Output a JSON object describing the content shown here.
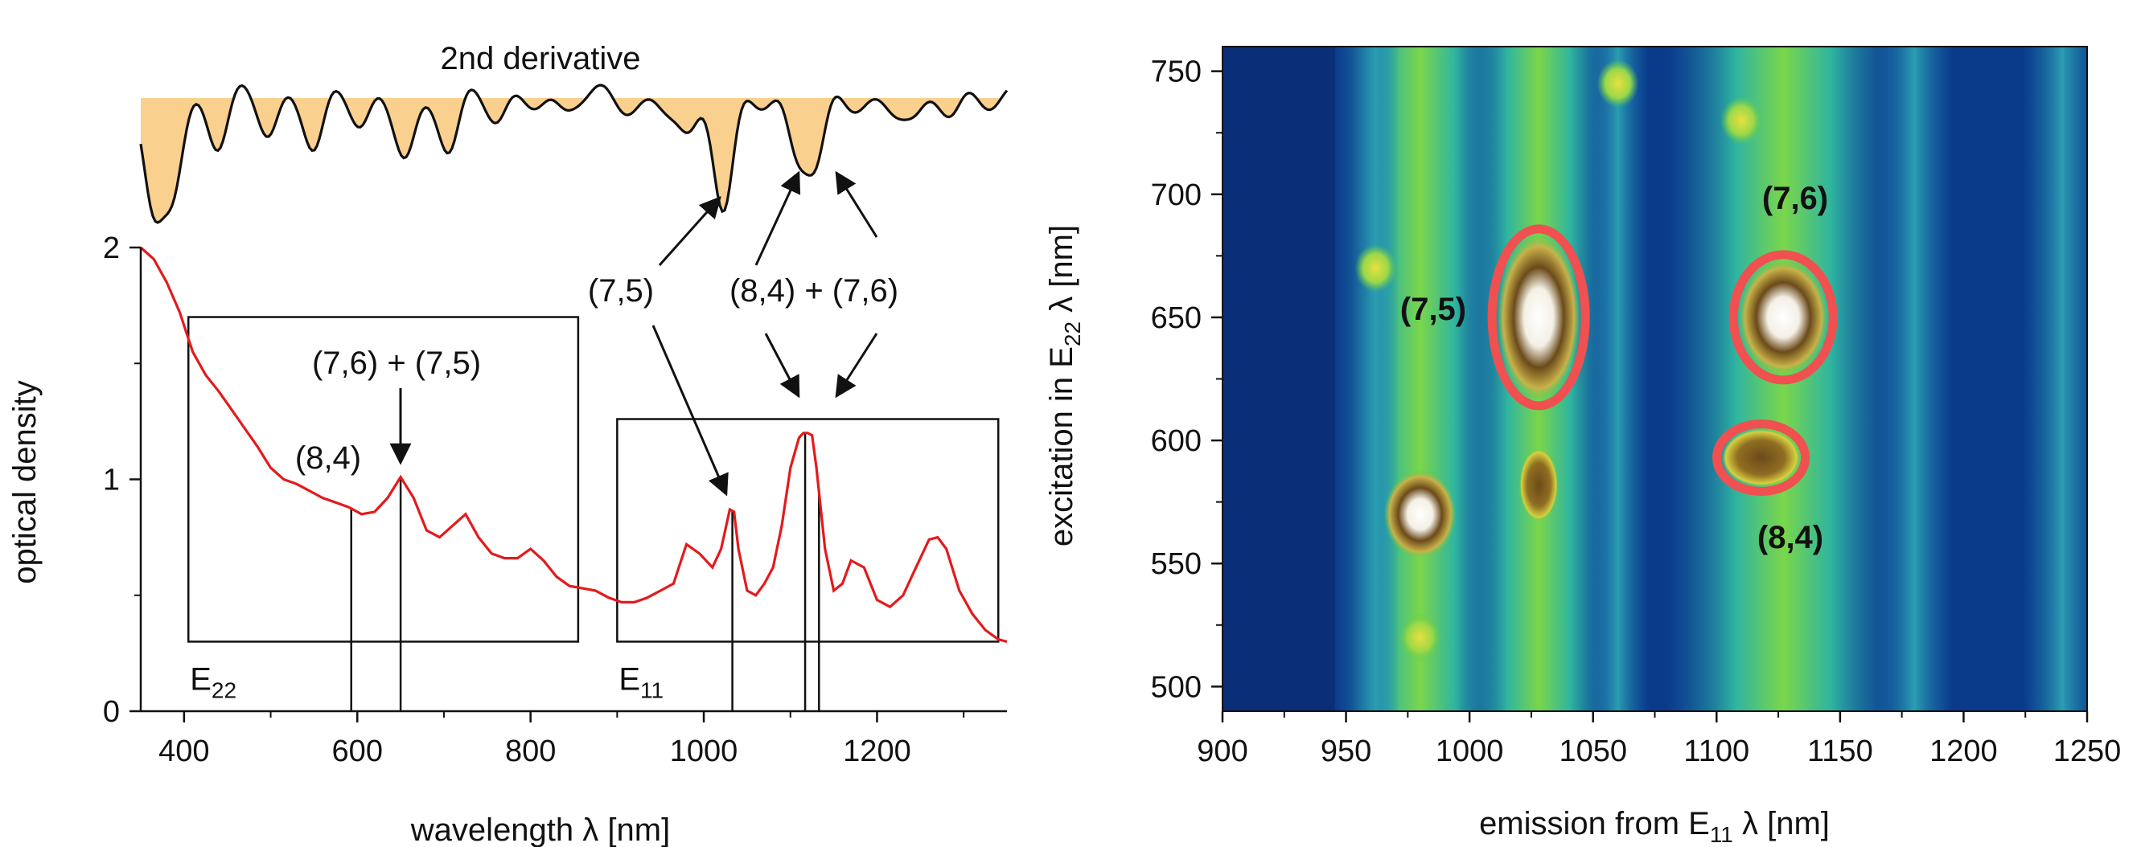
{
  "chart_data": [
    {
      "type": "line",
      "xlabel": "wavelength λ [nm]",
      "ylabel": "optical density",
      "xlim": [
        350,
        1350
      ],
      "ylim": [
        0,
        2
      ],
      "x_ticks": [
        "400",
        "600",
        "800",
        "1000",
        "1200"
      ],
      "y_ticks": [
        "0",
        "1",
        "2"
      ],
      "inset_title": "2nd derivative",
      "series": [
        {
          "color": "#e41a1c",
          "x": [
            350,
            365,
            380,
            395,
            410,
            425,
            440,
            455,
            470,
            485,
            500,
            515,
            530,
            545,
            560,
            575,
            590,
            605,
            620,
            635,
            650,
            665,
            680,
            695,
            710,
            725,
            740,
            755,
            770,
            785,
            800,
            815,
            830,
            845,
            860,
            875,
            890,
            905,
            920,
            935,
            950,
            965,
            980,
            995,
            1010,
            1020,
            1030,
            1035,
            1040,
            1050,
            1060,
            1070,
            1080,
            1090,
            1100,
            1110,
            1115,
            1120,
            1125,
            1130,
            1140,
            1150,
            1160,
            1170,
            1185,
            1200,
            1215,
            1230,
            1245,
            1260,
            1270,
            1280,
            1295,
            1310,
            1325,
            1340,
            1350
          ],
          "y": [
            2.0,
            1.95,
            1.85,
            1.72,
            1.55,
            1.45,
            1.38,
            1.3,
            1.22,
            1.14,
            1.05,
            1.0,
            0.98,
            0.95,
            0.92,
            0.9,
            0.88,
            0.85,
            0.86,
            0.92,
            1.01,
            0.92,
            0.78,
            0.75,
            0.8,
            0.85,
            0.75,
            0.68,
            0.66,
            0.66,
            0.7,
            0.65,
            0.58,
            0.54,
            0.53,
            0.52,
            0.49,
            0.47,
            0.47,
            0.49,
            0.52,
            0.55,
            0.72,
            0.68,
            0.62,
            0.7,
            0.87,
            0.86,
            0.7,
            0.52,
            0.5,
            0.55,
            0.62,
            0.8,
            1.05,
            1.18,
            1.2,
            1.2,
            1.19,
            1.05,
            0.7,
            0.52,
            0.55,
            0.65,
            0.62,
            0.48,
            0.45,
            0.5,
            0.62,
            0.74,
            0.75,
            0.7,
            0.52,
            0.42,
            0.35,
            0.31,
            0.3
          ]
        }
      ],
      "boxes": [
        {
          "label": "E",
          "sub": "22",
          "x0": 405,
          "x1": 855,
          "y0": 0.3,
          "y1": 1.7
        },
        {
          "label": "E",
          "sub": "11",
          "x0": 900,
          "x1": 1340,
          "y0": 0.3,
          "y1": 1.26
        }
      ],
      "annotations": [
        {
          "text": "(7,6) + (7,5)"
        },
        {
          "text": "(8,4)"
        },
        {
          "text": "(7,5)"
        },
        {
          "text": "(8,4) + (7,6)"
        }
      ],
      "markers_x": [
        593,
        650,
        1033,
        1117,
        1133
      ]
    },
    {
      "type": "heatmap",
      "xlabel": "emission from E11 λ [nm]",
      "xlabel_main": "emission from E",
      "xlabel_sub": "11",
      "xlabel_tail": " λ [nm]",
      "ylabel_main": "excitation in E",
      "ylabel_sub": "22",
      "ylabel_tail": " λ [nm]",
      "xlim": [
        900,
        1250
      ],
      "ylim": [
        490,
        760
      ],
      "x_ticks": [
        "900",
        "950",
        "1000",
        "1050",
        "1100",
        "1150",
        "1200",
        "1250"
      ],
      "y_ticks": [
        "500",
        "550",
        "600",
        "650",
        "700",
        "750"
      ],
      "colors": {
        "background": "#0a3a8a",
        "mid": "#1fa8a0",
        "high": "#5ec94a",
        "peak": "#6b4a1a",
        "max": "#ffffff",
        "circle": "#f05050"
      },
      "peaks": [
        {
          "label": "(7,5)",
          "x": 1028,
          "y": 650
        },
        {
          "label": "(7,6)",
          "x": 1127,
          "y": 650
        },
        {
          "label": "(8,4)",
          "x": 1118,
          "y": 593
        }
      ],
      "minor_spots": [
        {
          "x": 980,
          "y": 570
        },
        {
          "x": 962,
          "y": 670
        },
        {
          "x": 1028,
          "y": 580
        },
        {
          "x": 1110,
          "y": 730
        },
        {
          "x": 1060,
          "y": 745
        },
        {
          "x": 980,
          "y": 520
        }
      ]
    }
  ]
}
